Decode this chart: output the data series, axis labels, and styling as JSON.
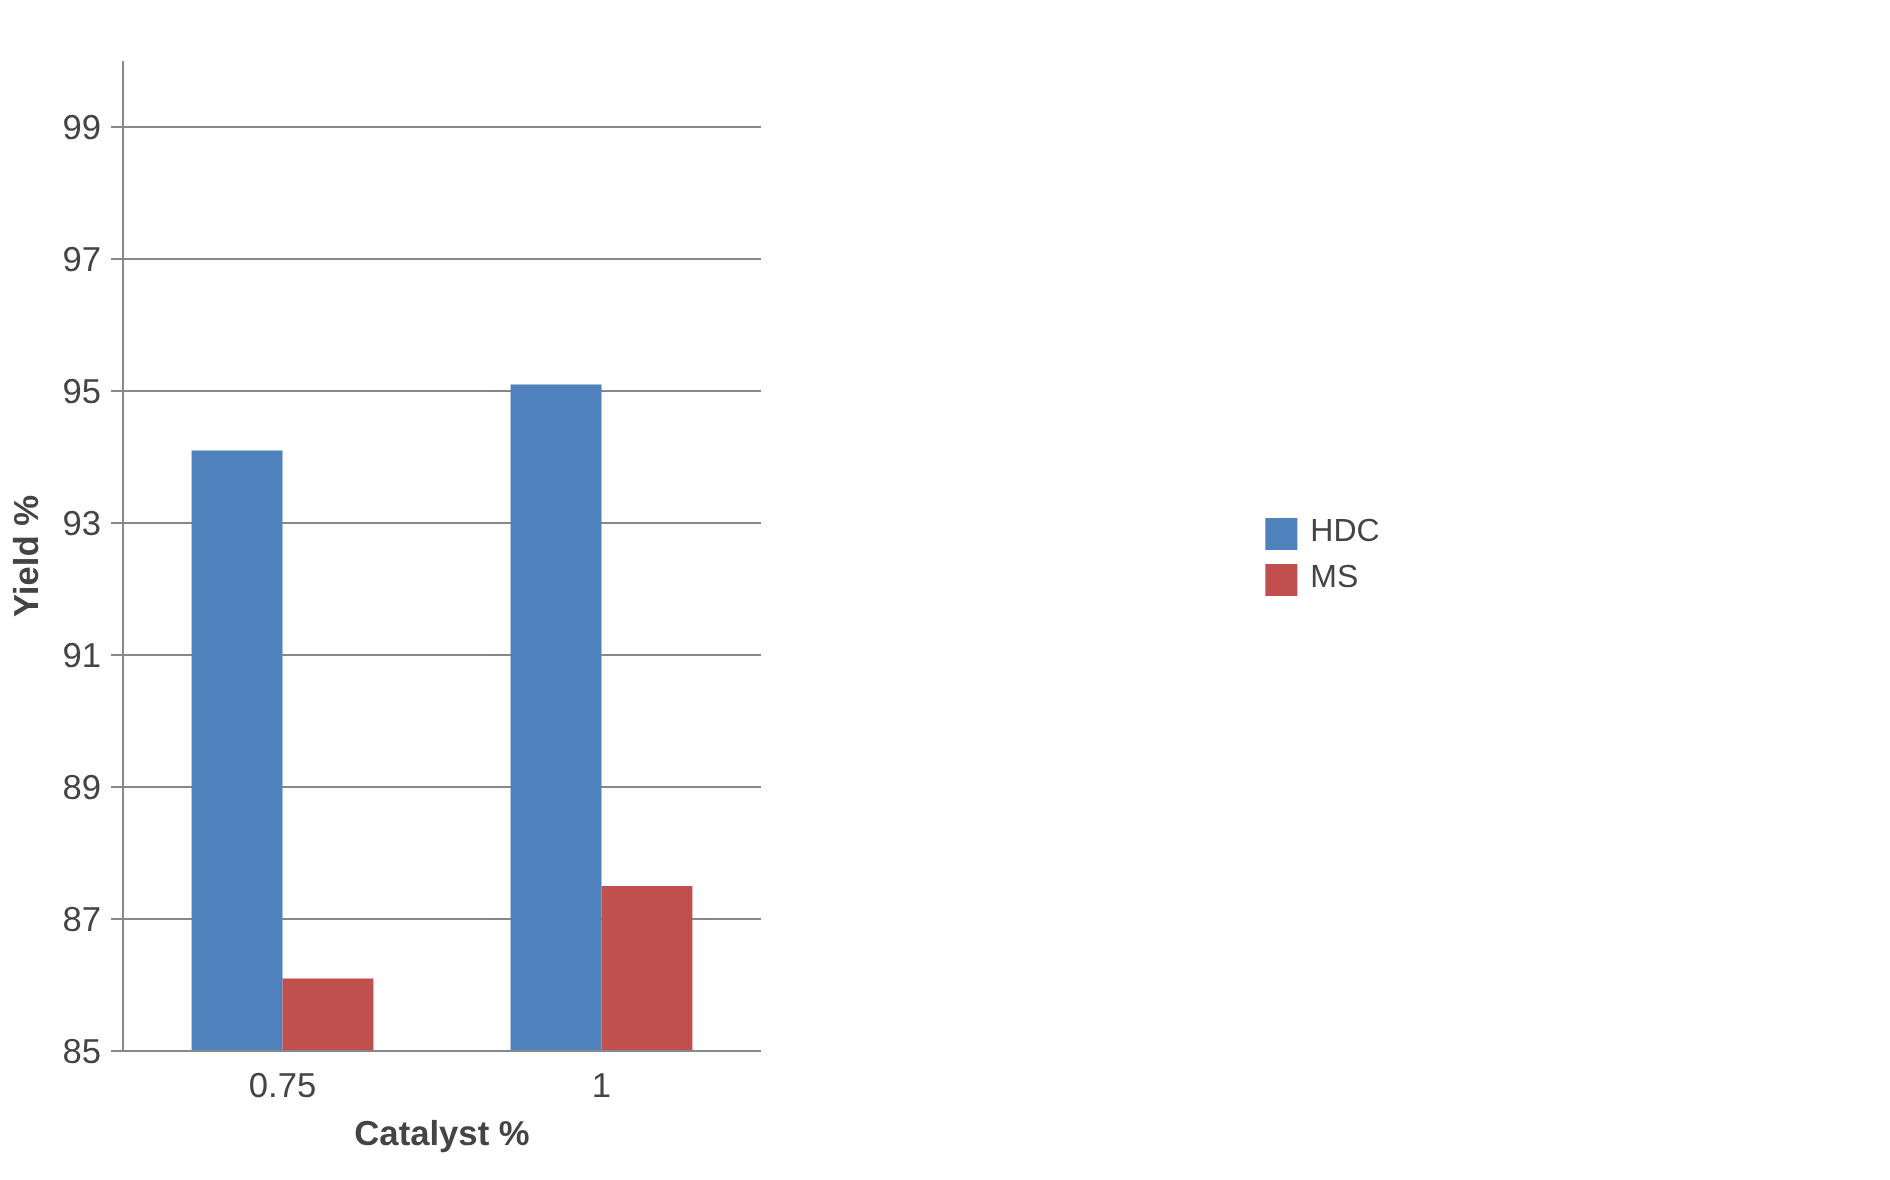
{
  "chart_data": {
    "type": "bar",
    "xlabel": "Catalyst %",
    "ylabel": "Yield %",
    "categories": [
      "0.75",
      "1"
    ],
    "series": [
      {
        "name": "HDC",
        "color": "#4f81bd",
        "values": [
          94.1,
          95.1
        ]
      },
      {
        "name": "MS",
        "color": "#c0504d",
        "values": [
          86.1,
          87.5
        ]
      }
    ],
    "ylim": [
      85,
      100
    ],
    "yticks": [
      85,
      87,
      89,
      91,
      93,
      95,
      97,
      99
    ],
    "grid": "y",
    "legend": "right"
  }
}
